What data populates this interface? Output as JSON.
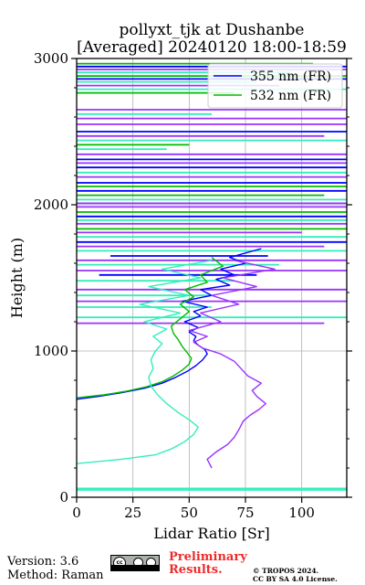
{
  "chart_data": {
    "type": "line",
    "title": "pollyxt_tjk at Dushanbe",
    "subtitle": "[Averaged] 20240120 18:00-18:59",
    "xlabel": "Lidar Ratio [Sr]",
    "ylabel": "Height (m)",
    "xlim": [
      0,
      120
    ],
    "ylim": [
      0,
      3000
    ],
    "xticks": [
      "0",
      "25",
      "50",
      "75",
      "100"
    ],
    "yticks": [
      "0",
      "1000",
      "2000",
      "3000"
    ],
    "grid": true,
    "legend_position": "top-right",
    "series": [
      {
        "name": "355 nm (FR)",
        "color": "#0000ff",
        "legend": true,
        "points": [
          [
            0,
            670
          ],
          [
            10,
            690
          ],
          [
            20,
            715
          ],
          [
            30,
            745
          ],
          [
            38,
            780
          ],
          [
            44,
            820
          ],
          [
            49,
            860
          ],
          [
            53,
            900
          ],
          [
            56,
            940
          ],
          [
            58,
            980
          ],
          [
            57,
            1010
          ],
          [
            54,
            1040
          ],
          [
            52,
            1070
          ],
          [
            53,
            1100
          ],
          [
            50,
            1130
          ],
          [
            54,
            1160
          ],
          [
            48,
            1200
          ],
          [
            55,
            1240
          ],
          [
            52,
            1270
          ],
          [
            58,
            1300
          ],
          [
            47,
            1340
          ],
          [
            60,
            1380
          ],
          [
            55,
            1420
          ],
          [
            68,
            1450
          ],
          [
            62,
            1490
          ],
          [
            70,
            1520
          ],
          [
            64,
            1560
          ],
          [
            75,
            1600
          ],
          [
            68,
            1640
          ],
          [
            82,
            1700
          ]
        ]
      },
      {
        "name": "532 nm (FR)",
        "color": "#00bb00",
        "legend": true,
        "points": [
          [
            0,
            680
          ],
          [
            12,
            700
          ],
          [
            22,
            725
          ],
          [
            31,
            755
          ],
          [
            38,
            790
          ],
          [
            43,
            830
          ],
          [
            47,
            870
          ],
          [
            50,
            910
          ],
          [
            51,
            950
          ],
          [
            49,
            990
          ],
          [
            47,
            1030
          ],
          [
            45,
            1080
          ],
          [
            43,
            1120
          ],
          [
            42,
            1170
          ],
          [
            46,
            1220
          ],
          [
            50,
            1270
          ],
          [
            46,
            1320
          ],
          [
            52,
            1370
          ],
          [
            48,
            1420
          ],
          [
            58,
            1470
          ],
          [
            55,
            1520
          ],
          [
            65,
            1580
          ],
          [
            60,
            1640
          ]
        ]
      },
      {
        "name": "",
        "color": "#9933ff",
        "legend": false,
        "points": [
          [
            60,
            200
          ],
          [
            58,
            260
          ],
          [
            62,
            310
          ],
          [
            67,
            360
          ],
          [
            70,
            410
          ],
          [
            72,
            460
          ],
          [
            74,
            520
          ],
          [
            77,
            560
          ],
          [
            81,
            600
          ],
          [
            84,
            640
          ],
          [
            80,
            690
          ],
          [
            78,
            730
          ],
          [
            82,
            780
          ],
          [
            76,
            830
          ],
          [
            73,
            880
          ],
          [
            70,
            930
          ],
          [
            64,
            980
          ],
          [
            56,
            1020
          ],
          [
            52,
            1060
          ],
          [
            58,
            1100
          ],
          [
            50,
            1140
          ],
          [
            64,
            1200
          ],
          [
            55,
            1260
          ],
          [
            72,
            1320
          ],
          [
            60,
            1380
          ],
          [
            80,
            1440
          ],
          [
            65,
            1500
          ],
          [
            88,
            1560
          ],
          [
            70,
            1620
          ]
        ]
      },
      {
        "name": "",
        "color": "#33eebb",
        "legend": false,
        "points": [
          [
            0,
            230
          ],
          [
            20,
            260
          ],
          [
            35,
            290
          ],
          [
            42,
            330
          ],
          [
            48,
            380
          ],
          [
            52,
            430
          ],
          [
            54,
            480
          ],
          [
            50,
            530
          ],
          [
            45,
            580
          ],
          [
            40,
            640
          ],
          [
            36,
            700
          ],
          [
            33,
            760
          ],
          [
            32,
            820
          ],
          [
            34,
            880
          ],
          [
            33,
            940
          ],
          [
            35,
            1000
          ],
          [
            38,
            1050
          ],
          [
            34,
            1100
          ],
          [
            40,
            1150
          ],
          [
            30,
            1200
          ],
          [
            46,
            1260
          ],
          [
            28,
            1320
          ],
          [
            50,
            1380
          ],
          [
            32,
            1440
          ],
          [
            55,
            1500
          ],
          [
            38,
            1560
          ],
          [
            60,
            1620
          ]
        ]
      }
    ],
    "upper_segments": [
      {
        "color": "#00bb00",
        "y": 2965,
        "x0": 0,
        "x1": 105
      },
      {
        "color": "#0000ff",
        "y": 2945,
        "x0": 0,
        "x1": 120
      },
      {
        "color": "#9933ff",
        "y": 2925,
        "x0": 0,
        "x1": 120
      },
      {
        "color": "#33eebb",
        "y": 2905,
        "x0": 0,
        "x1": 95
      },
      {
        "color": "#00bb00",
        "y": 2880,
        "x0": 0,
        "x1": 120
      },
      {
        "color": "#0000ff",
        "y": 2860,
        "x0": 0,
        "x1": 120
      },
      {
        "color": "#33eebb",
        "y": 2840,
        "x0": 0,
        "x1": 80
      },
      {
        "color": "#9933ff",
        "y": 2815,
        "x0": 0,
        "x1": 90
      },
      {
        "color": "#33eebb",
        "y": 2790,
        "x0": 0,
        "x1": 120
      },
      {
        "color": "#00bb00",
        "y": 2765,
        "x0": 0,
        "x1": 70
      },
      {
        "color": "#9933ff",
        "y": 2650,
        "x0": 0,
        "x1": 120
      },
      {
        "color": "#33eebb",
        "y": 2620,
        "x0": 0,
        "x1": 60
      },
      {
        "color": "#9933ff",
        "y": 2590,
        "x0": 0,
        "x1": 120
      },
      {
        "color": "#9933ff",
        "y": 2550,
        "x0": 0,
        "x1": 120
      },
      {
        "color": "#0000ff",
        "y": 2500,
        "x0": 0,
        "x1": 120
      },
      {
        "color": "#9933ff",
        "y": 2470,
        "x0": 0,
        "x1": 110
      },
      {
        "color": "#33eebb",
        "y": 2440,
        "x0": 0,
        "x1": 120
      },
      {
        "color": "#00bb00",
        "y": 2410,
        "x0": 0,
        "x1": 50
      },
      {
        "color": "#33eebb",
        "y": 2380,
        "x0": 0,
        "x1": 40
      },
      {
        "color": "#9933ff",
        "y": 2345,
        "x0": 0,
        "x1": 120
      },
      {
        "color": "#0000ff",
        "y": 2310,
        "x0": 0,
        "x1": 120
      },
      {
        "color": "#9933ff",
        "y": 2285,
        "x0": 0,
        "x1": 120
      },
      {
        "color": "#0000ff",
        "y": 2255,
        "x0": 0,
        "x1": 120
      },
      {
        "color": "#33eebb",
        "y": 2220,
        "x0": 0,
        "x1": 120
      },
      {
        "color": "#9933ff",
        "y": 2190,
        "x0": 0,
        "x1": 120
      },
      {
        "color": "#0000ff",
        "y": 2150,
        "x0": 0,
        "x1": 120
      },
      {
        "color": "#00bb00",
        "y": 2125,
        "x0": 0,
        "x1": 120
      },
      {
        "color": "#0000ff",
        "y": 2095,
        "x0": 0,
        "x1": 120
      },
      {
        "color": "#00bb00",
        "y": 2065,
        "x0": 0,
        "x1": 110
      },
      {
        "color": "#33eebb",
        "y": 2035,
        "x0": 0,
        "x1": 120
      },
      {
        "color": "#9933ff",
        "y": 2010,
        "x0": 0,
        "x1": 120
      },
      {
        "color": "#9933ff",
        "y": 1985,
        "x0": 0,
        "x1": 120
      },
      {
        "color": "#00bb00",
        "y": 1950,
        "x0": 0,
        "x1": 120
      },
      {
        "color": "#0000ff",
        "y": 1920,
        "x0": 0,
        "x1": 120
      },
      {
        "color": "#33eebb",
        "y": 1895,
        "x0": 0,
        "x1": 120
      },
      {
        "color": "#9933ff",
        "y": 1870,
        "x0": 0,
        "x1": 120
      },
      {
        "color": "#00bb00",
        "y": 1835,
        "x0": 0,
        "x1": 120
      },
      {
        "color": "#9933ff",
        "y": 1810,
        "x0": 0,
        "x1": 100
      },
      {
        "color": "#33eebb",
        "y": 1780,
        "x0": 0,
        "x1": 120
      },
      {
        "color": "#0000ff",
        "y": 1745,
        "x0": 0,
        "x1": 120
      },
      {
        "color": "#9933ff",
        "y": 1715,
        "x0": 0,
        "x1": 110
      },
      {
        "color": "#33eebb",
        "y": 1685,
        "x0": 0,
        "x1": 120
      },
      {
        "color": "#0000ff",
        "y": 1650,
        "x0": 15,
        "x1": 85
      },
      {
        "color": "#9933ff",
        "y": 1620,
        "x0": 0,
        "x1": 120
      },
      {
        "color": "#33eebb",
        "y": 1590,
        "x0": 0,
        "x1": 90
      },
      {
        "color": "#9933ff",
        "y": 1550,
        "x0": 0,
        "x1": 120
      },
      {
        "color": "#0000ff",
        "y": 1520,
        "x0": 10,
        "x1": 80
      },
      {
        "color": "#33eebb",
        "y": 1480,
        "x0": 0,
        "x1": 70
      },
      {
        "color": "#9933ff",
        "y": 1420,
        "x0": 0,
        "x1": 120
      },
      {
        "color": "#33eebb",
        "y": 1380,
        "x0": 0,
        "x1": 60
      },
      {
        "color": "#9933ff",
        "y": 1340,
        "x0": 0,
        "x1": 120
      },
      {
        "color": "#33eebb",
        "y": 1300,
        "x0": 0,
        "x1": 60
      },
      {
        "color": "#33eebb",
        "y": 1230,
        "x0": 0,
        "x1": 120
      },
      {
        "color": "#9933ff",
        "y": 1190,
        "x0": 0,
        "x1": 110
      },
      {
        "color": "#33eebb",
        "y": 60,
        "x0": 0,
        "x1": 120
      },
      {
        "color": "#33eebb",
        "y": 50,
        "x0": 0,
        "x1": 120
      }
    ]
  },
  "footer": {
    "version": "Version: 3.6",
    "method": "Method: Raman",
    "preliminary_line1": "Preliminary",
    "preliminary_line2": "Results.",
    "copyright_line1": "© TROPOS 2024.",
    "copyright_line2": "CC BY SA 4.0 License.",
    "license_badge_text": "cc"
  }
}
